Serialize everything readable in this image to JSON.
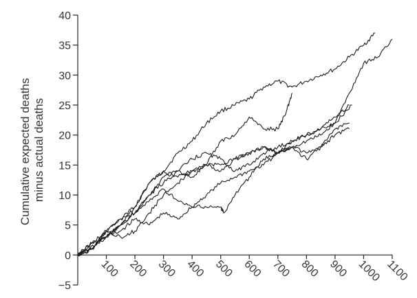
{
  "chart_data": {
    "type": "line",
    "title": "",
    "xlabel": "",
    "ylabel_line1": "Cumulative expected deaths",
    "ylabel_line2": "minus actual deaths",
    "xlim": [
      0,
      1100
    ],
    "ylim": [
      -5,
      40
    ],
    "x_ticks": [
      100,
      200,
      300,
      400,
      500,
      600,
      700,
      800,
      900,
      1000,
      1100
    ],
    "y_ticks": [
      -5,
      0,
      5,
      10,
      15,
      20,
      25,
      30,
      35,
      40
    ],
    "grid": false,
    "series": [
      {
        "x": [
          0,
          40,
          100,
          150,
          200,
          250,
          300,
          350,
          400,
          450,
          500,
          550,
          600,
          650,
          700,
          750,
          800,
          850,
          900,
          950,
          1000,
          1040
        ],
        "y": [
          0,
          1,
          3,
          5,
          8,
          12,
          14,
          17,
          19,
          22,
          24,
          25,
          26,
          28,
          29,
          28,
          29,
          30,
          31,
          33,
          35,
          37
        ]
      },
      {
        "x": [
          0,
          50,
          100,
          150,
          200,
          250,
          300,
          350,
          400,
          450,
          500,
          550,
          600,
          650,
          700,
          750,
          800,
          850,
          900,
          950,
          1000,
          1050,
          1100
        ],
        "y": [
          0,
          1,
          3,
          4,
          6,
          5,
          7,
          6,
          8,
          10,
          12,
          13,
          14,
          15,
          17,
          18,
          19,
          20,
          22,
          27,
          32,
          33,
          36
        ]
      },
      {
        "x": [
          0,
          50,
          100,
          150,
          200,
          250,
          300,
          350,
          400,
          450,
          500,
          550,
          600,
          650,
          700,
          730,
          750
        ],
        "y": [
          0,
          2,
          3,
          5,
          7,
          10,
          13,
          14,
          13,
          15,
          19,
          20,
          23,
          21,
          21,
          24,
          27
        ]
      },
      {
        "x": [
          0,
          50,
          100,
          150,
          200,
          250,
          300,
          350,
          400,
          450,
          500,
          550,
          600,
          650,
          700,
          750,
          800,
          850,
          900,
          960
        ],
        "y": [
          0,
          2,
          3,
          5,
          7,
          10,
          12,
          14,
          16,
          17,
          16,
          14,
          15,
          17,
          18,
          19,
          20,
          21,
          22,
          25
        ]
      },
      {
        "x": [
          0,
          50,
          100,
          150,
          200,
          250,
          300,
          350,
          400,
          450,
          500,
          550,
          600,
          650,
          700,
          750,
          800,
          850,
          900,
          950
        ],
        "y": [
          0,
          1,
          4,
          6,
          8,
          12,
          14,
          13,
          14,
          15,
          14,
          16,
          17,
          18,
          17,
          18,
          16,
          18,
          21,
          22
        ]
      },
      {
        "x": [
          0,
          50,
          100,
          150,
          200,
          250,
          300,
          350,
          400,
          450,
          500,
          510,
          550,
          600,
          650,
          700,
          750,
          800,
          850,
          900,
          950
        ],
        "y": [
          0,
          1,
          4,
          6,
          7,
          9,
          11,
          9,
          8,
          8,
          8,
          7,
          10,
          13,
          16,
          17,
          18,
          17,
          18,
          20,
          21
        ]
      },
      {
        "x": [
          0,
          50,
          100,
          150,
          200,
          250,
          300,
          350,
          400,
          450,
          500,
          550,
          600,
          650,
          700,
          750,
          800,
          850,
          900,
          950
        ],
        "y": [
          0,
          2,
          4,
          3,
          4,
          7,
          10,
          12,
          14,
          15,
          15,
          16,
          17,
          18,
          17,
          19,
          20,
          21,
          23,
          25
        ]
      }
    ]
  }
}
